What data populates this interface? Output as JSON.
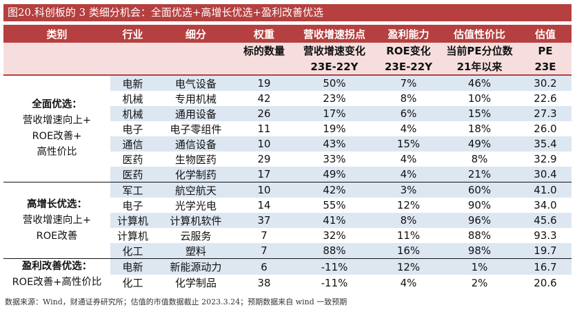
{
  "title": "图20.科创板的 3 类细分机会：全面优选+高增长优选+盈利改善优选",
  "header1": [
    "类别",
    "行业",
    "细分",
    "权重",
    "营收增速拐点",
    "盈利能力",
    "估值性价比",
    "估值"
  ],
  "header2a": [
    "标的数量",
    "营收增速变化",
    "ROE变化",
    "当前PE分位数",
    "PE"
  ],
  "header2b": [
    "23E-22Y",
    "23E-22Y",
    "21年以来",
    "23E"
  ],
  "groups": [
    {
      "name": "全面优选：",
      "line2": "营收增速向上+",
      "line3": "ROE改善+",
      "line4": "高性价比"
    },
    {
      "name": "高增长优选：",
      "line2": "营收增速向上+",
      "line3": "ROE改善"
    },
    {
      "name": "盈利改善优选：",
      "line2": "ROE改善+高性价比"
    }
  ],
  "rows": [
    {
      "ind": "电新",
      "sub": "电气设备",
      "n": "19",
      "rev": "50%",
      "roe": "7%",
      "pe": "46%",
      "val": "30.2"
    },
    {
      "ind": "机械",
      "sub": "专用机械",
      "n": "42",
      "rev": "23%",
      "roe": "8%",
      "pe": "10%",
      "val": "22.6"
    },
    {
      "ind": "机械",
      "sub": "通用设备",
      "n": "26",
      "rev": "17%",
      "roe": "6%",
      "pe": "15%",
      "val": "27.3"
    },
    {
      "ind": "电子",
      "sub": "电子零组件",
      "n": "11",
      "rev": "19%",
      "roe": "4%",
      "pe": "18%",
      "val": "26.0"
    },
    {
      "ind": "通信",
      "sub": "通信设备",
      "n": "10",
      "rev": "43%",
      "roe": "15%",
      "pe": "49%",
      "val": "35.4"
    },
    {
      "ind": "医药",
      "sub": "生物医药",
      "n": "29",
      "rev": "33%",
      "roe": "4%",
      "pe": "8%",
      "val": "32.9"
    },
    {
      "ind": "医药",
      "sub": "化学制药",
      "n": "17",
      "rev": "49%",
      "roe": "4%",
      "pe": "21%",
      "val": "30.4"
    },
    {
      "ind": "军工",
      "sub": "航空航天",
      "n": "10",
      "rev": "42%",
      "roe": "3%",
      "pe": "60%",
      "val": "41.0"
    },
    {
      "ind": "电子",
      "sub": "光学光电",
      "n": "14",
      "rev": "55%",
      "roe": "12%",
      "pe": "90%",
      "val": "34.0"
    },
    {
      "ind": "计算机",
      "sub": "计算机软件",
      "n": "37",
      "rev": "41%",
      "roe": "8%",
      "pe": "96%",
      "val": "45.6"
    },
    {
      "ind": "计算机",
      "sub": "云服务",
      "n": "7",
      "rev": "32%",
      "roe": "11%",
      "pe": "88%",
      "val": "93.3"
    },
    {
      "ind": "化工",
      "sub": "塑料",
      "n": "7",
      "rev": "88%",
      "roe": "16%",
      "pe": "98%",
      "val": "19.7"
    },
    {
      "ind": "电新",
      "sub": "新能源动力",
      "n": "6",
      "rev": "-11%",
      "roe": "12%",
      "pe": "1%",
      "val": "16.7"
    },
    {
      "ind": "化工",
      "sub": "化学制品",
      "n": "38",
      "rev": "-11%",
      "roe": "4%",
      "pe": "2%",
      "val": "20.6"
    }
  ],
  "footer": "数据来源：Wind，财通证券研究所；估值的市值数据截止 2023.3.24；预期数据来自 wind 一致预期"
}
